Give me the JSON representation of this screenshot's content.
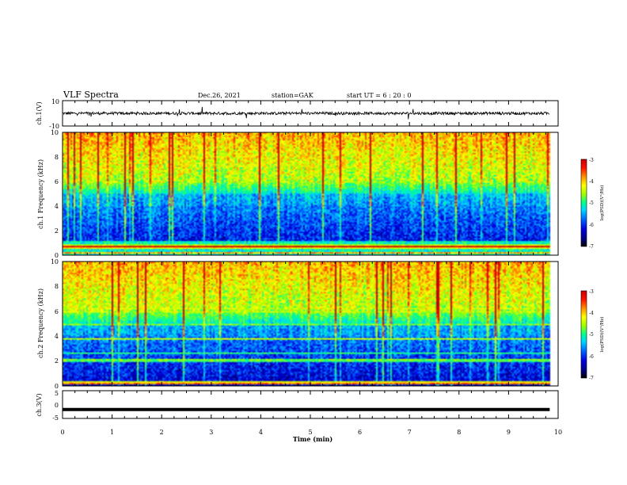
{
  "header": {
    "title": "VLF Spectra",
    "date": "Dec.26, 2021",
    "station": "station=GAK",
    "start": "start UT = 6 : 20 : 0"
  },
  "chart_data": [
    {
      "type": "line",
      "name": "waveform-ch1",
      "ylabel": "ch.1(V)",
      "yticks": [
        "10",
        "-10"
      ],
      "ylim": [
        -10,
        10
      ],
      "xlim": [
        0,
        10
      ],
      "baseline": 0,
      "data_end_min": 9.83
    },
    {
      "type": "heatmap",
      "name": "spectrogram-ch1",
      "ylabel": "ch.1 Frequency (kHz)",
      "ylim": [
        0,
        10
      ],
      "yticks": [
        "0",
        "2",
        "4",
        "6",
        "8",
        "10"
      ],
      "xlim": [
        0,
        10
      ],
      "data_end_min": 9.83,
      "colorbar": {
        "label": "log(PSD)(V²/Hz)",
        "range": [
          -7,
          -3
        ],
        "ticks": [
          "-3",
          "-4",
          "-5",
          "-6",
          "-7"
        ]
      }
    },
    {
      "type": "heatmap",
      "name": "spectrogram-ch2",
      "ylabel": "ch.2 Frequency (kHz)",
      "ylim": [
        0,
        10
      ],
      "yticks": [
        "0",
        "2",
        "4",
        "6",
        "8",
        "10"
      ],
      "xlim": [
        0,
        10
      ],
      "data_end_min": 9.83,
      "colorbar": {
        "label": "log(PSD)(V²/Hz)",
        "range": [
          -7,
          -3
        ],
        "ticks": [
          "-3",
          "-4",
          "-5",
          "-6",
          "-7"
        ]
      }
    },
    {
      "type": "line",
      "name": "waveform-ch3",
      "ylabel": "ch.3(V)",
      "yticks": [
        "5",
        "0",
        "-5"
      ],
      "ylim": [
        -5,
        5
      ],
      "xlim": [
        0,
        10
      ],
      "baseline": -1.8,
      "data_end_min": 9.83
    }
  ],
  "xaxis": {
    "label": "Time (min)",
    "ticks": [
      "0",
      "1",
      "2",
      "3",
      "4",
      "5",
      "6",
      "7",
      "8",
      "9",
      "10"
    ]
  },
  "colors": {
    "psd_scale": [
      "#000000",
      "#00007a",
      "#0000e0",
      "#0070ff",
      "#00d8ff",
      "#00ff90",
      "#a0ff00",
      "#ffff00",
      "#ff9000",
      "#ff1000",
      "#c80000"
    ]
  }
}
